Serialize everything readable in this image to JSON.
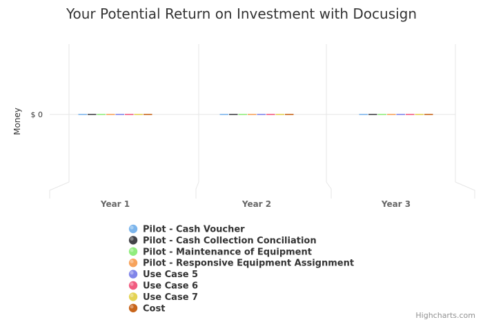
{
  "chart_data": {
    "type": "bar",
    "title": "Your Potential Return on Investment with Docusign",
    "ylabel": "Money",
    "y_tick_labels": [
      "$ 0"
    ],
    "categories": [
      "Year 1",
      "Year 2",
      "Year 3"
    ],
    "series": [
      {
        "name": "Pilot - Cash Voucher",
        "color": "#7cb5ec",
        "values": [
          0,
          0,
          0
        ]
      },
      {
        "name": "Pilot - Cash Collection Conciliation",
        "color": "#434348",
        "values": [
          0,
          0,
          0
        ]
      },
      {
        "name": "Pilot - Maintenance of Equipment",
        "color": "#90ed7d",
        "values": [
          0,
          0,
          0
        ]
      },
      {
        "name": "Pilot - Responsive Equipment Assignment",
        "color": "#f7a35c",
        "values": [
          0,
          0,
          0
        ]
      },
      {
        "name": "Use Case 5",
        "color": "#8085e9",
        "values": [
          0,
          0,
          0
        ]
      },
      {
        "name": "Use Case 6",
        "color": "#f15c80",
        "values": [
          0,
          0,
          0
        ]
      },
      {
        "name": "Use Case 7",
        "color": "#e4d354",
        "values": [
          0,
          0,
          0
        ]
      },
      {
        "name": "Cost",
        "color": "#c8651b",
        "values": [
          0,
          0,
          0
        ]
      }
    ],
    "grid": true,
    "legend_position": "bottom"
  },
  "credits": "Highcharts.com"
}
